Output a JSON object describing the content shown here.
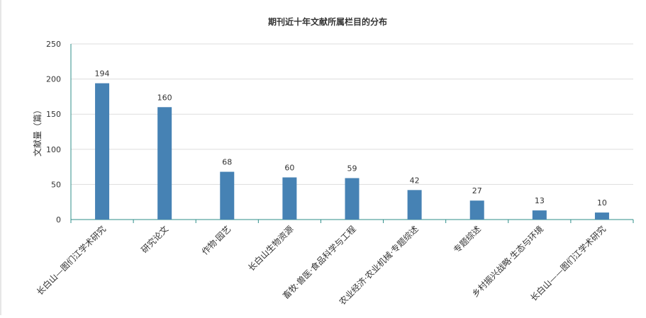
{
  "chart_data": {
    "type": "bar",
    "title": "期刊近十年文献所属栏目的分布",
    "xlabel": "",
    "ylabel": "文献量（篇）",
    "ylim": [
      0,
      250
    ],
    "yticks": [
      0,
      50,
      100,
      150,
      200,
      250
    ],
    "grid": true,
    "categories": [
      "长白山—图们江学术研究",
      "研究论文",
      "作物·园艺",
      "长白山生物资源",
      "畜牧·兽医·食品科学与工程",
      "农业经济·农业机械·专题综述",
      "专题综述",
      "乡村振兴战略·生态与环境",
      "长白山——图们江学术研究"
    ],
    "values": [
      194,
      160,
      68,
      60,
      59,
      42,
      27,
      13,
      10
    ]
  },
  "colors": {
    "bar": "#4682b4",
    "axis": "#2f8f8a",
    "grid": "#dddddd",
    "text": "#333333"
  }
}
